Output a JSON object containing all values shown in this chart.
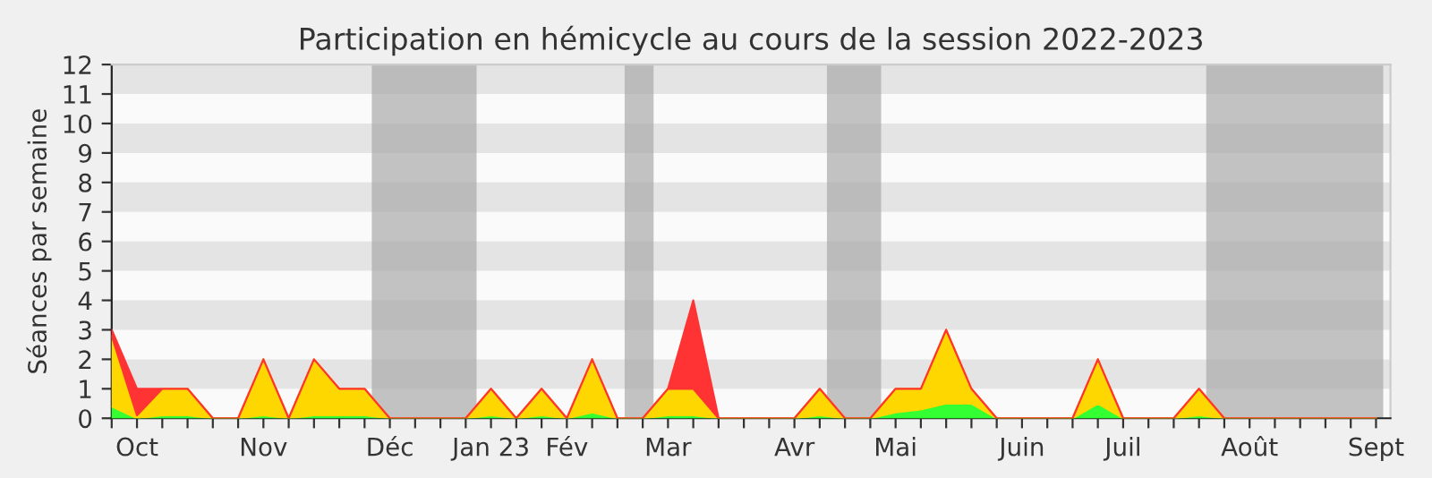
{
  "chart_data": {
    "type": "area",
    "stacked": true,
    "title": "Participation en hémicycle au cours de la session 2022-2023",
    "ylabel": "Séances par semaine",
    "x": [
      "2022-10-03",
      "2022-10-10",
      "2022-10-17",
      "2022-10-24",
      "2022-10-31",
      "2022-11-07",
      "2022-11-14",
      "2022-11-21",
      "2022-11-28",
      "2022-12-05",
      "2022-12-12",
      "2022-12-19",
      "2022-12-26",
      "2023-01-02",
      "2023-01-09",
      "2023-01-16",
      "2023-01-23",
      "2023-01-30",
      "2023-02-06",
      "2023-02-13",
      "2023-02-20",
      "2023-02-27",
      "2023-03-06",
      "2023-03-13",
      "2023-03-20",
      "2023-03-27",
      "2023-04-03",
      "2023-04-10",
      "2023-04-17",
      "2023-04-24",
      "2023-05-01",
      "2023-05-08",
      "2023-05-15",
      "2023-05-22",
      "2023-05-29",
      "2023-06-05",
      "2023-06-12",
      "2023-06-19",
      "2023-06-26",
      "2023-07-03",
      "2023-07-10",
      "2023-07-17",
      "2023-07-24",
      "2023-07-31",
      "2023-08-07",
      "2023-08-14",
      "2023-08-21",
      "2023-08-28",
      "2023-09-04",
      "2023-09-11",
      "2023-09-18"
    ],
    "series": [
      {
        "color": "#33ff33",
        "values": [
          0.4,
          0,
          0.1,
          0.1,
          0,
          0,
          0.1,
          0,
          0.1,
          0.1,
          0.1,
          0,
          0,
          0,
          0,
          0.1,
          0,
          0.1,
          0,
          0.2,
          0,
          0,
          0.1,
          0.1,
          0,
          0,
          0,
          0,
          0.1,
          0,
          0,
          0.2,
          0.3,
          0.5,
          0.5,
          0,
          0,
          0,
          0,
          0.5,
          0,
          0,
          0,
          0.1,
          0,
          0,
          0,
          0,
          0,
          0,
          0
        ]
      },
      {
        "color": "#ffd700",
        "values": [
          2.4,
          0.1,
          0.9,
          0.9,
          0,
          0,
          1.9,
          0,
          1.9,
          0.9,
          0.9,
          0,
          0,
          0,
          0,
          0.9,
          0,
          0.9,
          0,
          1.8,
          0,
          0,
          0.9,
          0.9,
          0,
          0,
          0,
          0,
          0.9,
          0,
          0,
          0.8,
          0.7,
          2.5,
          0.5,
          0,
          0,
          0,
          0,
          1.5,
          0,
          0,
          0,
          0.9,
          0,
          0,
          0,
          0,
          0,
          0,
          0
        ]
      },
      {
        "color": "#ff3333",
        "values": [
          0.2,
          0.9,
          0,
          0,
          0,
          0,
          0,
          0,
          0,
          0,
          0,
          0,
          0,
          0,
          0,
          0,
          0,
          0,
          0,
          0,
          0,
          0,
          0,
          3,
          0,
          0,
          0,
          0,
          0,
          0,
          0,
          0,
          0,
          0,
          0,
          0,
          0,
          0,
          0,
          0,
          0,
          0,
          0,
          0,
          0,
          0,
          0,
          0,
          0,
          0,
          0
        ]
      }
    ],
    "xlim": [
      "2022-10-03",
      "2023-09-22"
    ],
    "ylim": [
      0,
      12
    ],
    "xticks": [
      {
        "value": "2022-10-03",
        "label": null
      },
      {
        "value": "2022-10-10",
        "label": "Oct"
      },
      {
        "value": "2022-10-17",
        "label": null
      },
      {
        "value": "2022-10-24",
        "label": null
      },
      {
        "value": "2022-10-31",
        "label": null
      },
      {
        "value": "2022-11-07",
        "label": null
      },
      {
        "value": "2022-11-14",
        "label": "Nov"
      },
      {
        "value": "2022-11-21",
        "label": null
      },
      {
        "value": "2022-11-28",
        "label": null
      },
      {
        "value": "2022-12-05",
        "label": null
      },
      {
        "value": "2022-12-12",
        "label": null
      },
      {
        "value": "2022-12-19",
        "label": "Déc"
      },
      {
        "value": "2022-12-26",
        "label": null
      },
      {
        "value": "2023-01-02",
        "label": null
      },
      {
        "value": "2023-01-09",
        "label": null
      },
      {
        "value": "2023-01-16",
        "label": "Jan 23"
      },
      {
        "value": "2023-01-23",
        "label": null
      },
      {
        "value": "2023-01-30",
        "label": null
      },
      {
        "value": "2023-02-06",
        "label": "Fév"
      },
      {
        "value": "2023-02-13",
        "label": null
      },
      {
        "value": "2023-02-20",
        "label": null
      },
      {
        "value": "2023-02-27",
        "label": null
      },
      {
        "value": "2023-03-06",
        "label": "Mar"
      },
      {
        "value": "2023-03-13",
        "label": null
      },
      {
        "value": "2023-03-20",
        "label": null
      },
      {
        "value": "2023-03-27",
        "label": null
      },
      {
        "value": "2023-04-03",
        "label": null
      },
      {
        "value": "2023-04-10",
        "label": "Avr"
      },
      {
        "value": "2023-04-17",
        "label": null
      },
      {
        "value": "2023-04-24",
        "label": null
      },
      {
        "value": "2023-05-01",
        "label": null
      },
      {
        "value": "2023-05-08",
        "label": "Mai"
      },
      {
        "value": "2023-05-15",
        "label": null
      },
      {
        "value": "2023-05-22",
        "label": null
      },
      {
        "value": "2023-05-29",
        "label": null
      },
      {
        "value": "2023-06-05",
        "label": null
      },
      {
        "value": "2023-06-12",
        "label": "Juin"
      },
      {
        "value": "2023-06-19",
        "label": null
      },
      {
        "value": "2023-06-26",
        "label": null
      },
      {
        "value": "2023-07-03",
        "label": null
      },
      {
        "value": "2023-07-10",
        "label": "Juil"
      },
      {
        "value": "2023-07-17",
        "label": null
      },
      {
        "value": "2023-07-24",
        "label": null
      },
      {
        "value": "2023-07-31",
        "label": null
      },
      {
        "value": "2023-08-07",
        "label": null
      },
      {
        "value": "2023-08-14",
        "label": "Août"
      },
      {
        "value": "2023-08-21",
        "label": null
      },
      {
        "value": "2023-08-28",
        "label": null
      },
      {
        "value": "2023-09-04",
        "label": null
      },
      {
        "value": "2023-09-11",
        "label": null
      },
      {
        "value": "2023-09-18",
        "label": "Sept"
      }
    ],
    "yticks": [
      0,
      1,
      2,
      3,
      4,
      5,
      6,
      7,
      8,
      9,
      10,
      11,
      12
    ],
    "bands": [
      {
        "axis": "y",
        "from": 1,
        "to": 2,
        "color": "#e4e4e4"
      },
      {
        "axis": "y",
        "from": 3,
        "to": 4,
        "color": "#e4e4e4"
      },
      {
        "axis": "y",
        "from": 5,
        "to": 6,
        "color": "#e4e4e4"
      },
      {
        "axis": "y",
        "from": 7,
        "to": 8,
        "color": "#e4e4e4"
      },
      {
        "axis": "y",
        "from": 9,
        "to": 10,
        "color": "#e4e4e4"
      },
      {
        "axis": "y",
        "from": 11,
        "to": 12,
        "color": "#e4e4e4"
      },
      {
        "axis": "x",
        "from": "2022-12-14",
        "to": "2023-01-12",
        "color": "#aaaaaa"
      },
      {
        "axis": "x",
        "from": "2023-02-22",
        "to": "2023-03-02",
        "color": "#aaaaaa"
      },
      {
        "axis": "x",
        "from": "2023-04-19",
        "to": "2023-05-04",
        "color": "#aaaaaa"
      },
      {
        "axis": "x",
        "from": "2023-08-02",
        "to": "2023-09-20",
        "color": "#aaaaaa"
      }
    ]
  }
}
